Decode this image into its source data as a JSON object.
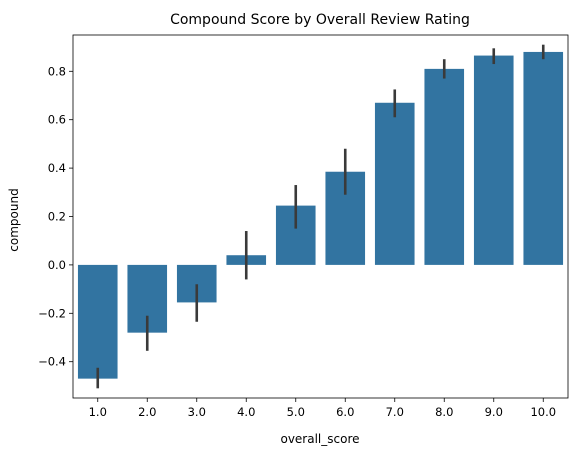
{
  "chart_data": {
    "type": "bar",
    "title": "Compound Score by Overall Review Rating",
    "xlabel": "overall_score",
    "ylabel": "compound",
    "categories": [
      "1.0",
      "2.0",
      "3.0",
      "4.0",
      "5.0",
      "6.0",
      "7.0",
      "8.0",
      "9.0",
      "10.0"
    ],
    "values": [
      -0.47,
      -0.28,
      -0.155,
      0.04,
      0.245,
      0.385,
      0.67,
      0.81,
      0.865,
      0.88
    ],
    "error_low": [
      -0.51,
      -0.355,
      -0.235,
      -0.06,
      0.15,
      0.29,
      0.61,
      0.77,
      0.83,
      0.85
    ],
    "error_high": [
      -0.425,
      -0.21,
      -0.08,
      0.14,
      0.33,
      0.48,
      0.725,
      0.85,
      0.895,
      0.91
    ],
    "ylim": [
      -0.55,
      0.95
    ],
    "yticks": [
      -0.4,
      -0.2,
      0.0,
      0.2,
      0.4,
      0.6,
      0.8
    ],
    "ytick_labels": [
      "−0.4",
      "−0.2",
      "0.0",
      "0.2",
      "0.4",
      "0.6",
      "0.8"
    ],
    "grid": false,
    "bar_color": "#3274a1",
    "error_color": "#3a3a3a"
  }
}
